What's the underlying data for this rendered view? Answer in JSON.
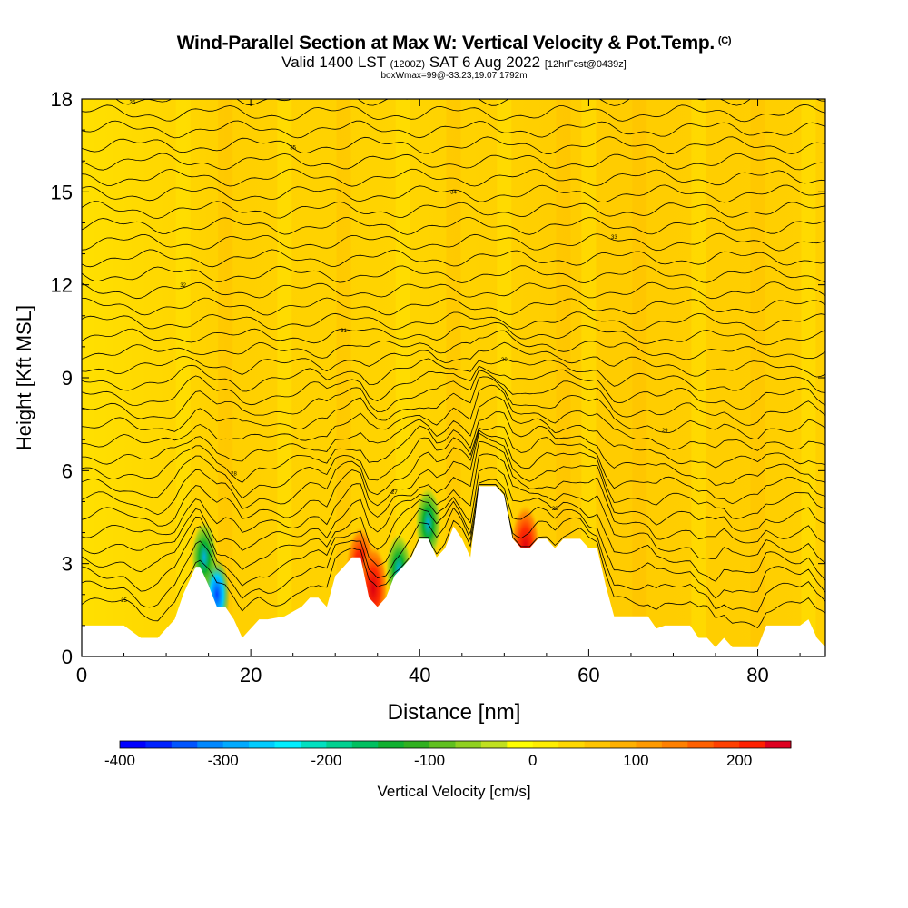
{
  "header": {
    "title": "Wind-Parallel Section at Max W: Vertical Velocity & Pot.Temp.",
    "copyright": "(C)",
    "valid_prefix": "Valid 1400 LST",
    "utc": "(1200Z)",
    "valid_date": "SAT 6 Aug 2022",
    "forecast": "[12hrFcst@0439z]",
    "boxinfo": "boxWmax=99@-33.23,19.07,1792m"
  },
  "chart_data": {
    "type": "heatmap",
    "xlabel": "Distance [nm]",
    "ylabel": "Height [Kft MSL]",
    "xlim": [
      0,
      88
    ],
    "ylim": [
      0,
      18
    ],
    "xticks": [
      0,
      20,
      40,
      60,
      80
    ],
    "yticks": [
      0,
      3,
      6,
      9,
      12,
      15,
      18
    ],
    "terrain": {
      "x": [
        0,
        5,
        7,
        9,
        10,
        11,
        12,
        13,
        13.5,
        14,
        15,
        16,
        17,
        18,
        19,
        20,
        21,
        22,
        24,
        26,
        27,
        28,
        29,
        30,
        31,
        32,
        33,
        34,
        35,
        36,
        37,
        38,
        39,
        40,
        41,
        42,
        43,
        44,
        45,
        46,
        47,
        48,
        49,
        50,
        51,
        52,
        53,
        54,
        55,
        56,
        57,
        58,
        59,
        60,
        61,
        62,
        63,
        64,
        65,
        66,
        67,
        68,
        69,
        70,
        71,
        72,
        73,
        74,
        75,
        76,
        77,
        78,
        79,
        80,
        81,
        82,
        83,
        84,
        85,
        86,
        87,
        88
      ],
      "height_kft": [
        1.0,
        1.0,
        0.6,
        0.6,
        0.9,
        1.2,
        2.0,
        2.6,
        2.9,
        2.9,
        2.3,
        1.6,
        1.6,
        1.2,
        0.6,
        0.9,
        1.2,
        1.2,
        1.3,
        1.6,
        1.9,
        1.9,
        1.6,
        2.6,
        2.9,
        3.2,
        3.2,
        1.9,
        1.6,
        1.9,
        2.6,
        2.9,
        3.2,
        3.8,
        3.8,
        3.2,
        3.5,
        4.2,
        3.8,
        3.2,
        5.5,
        5.5,
        5.5,
        5.2,
        3.8,
        3.5,
        3.5,
        3.8,
        3.8,
        3.5,
        3.8,
        3.8,
        3.8,
        3.5,
        3.5,
        2.3,
        1.3,
        1.3,
        1.3,
        1.3,
        1.3,
        0.9,
        1.0,
        1.0,
        1.0,
        1.0,
        0.6,
        0.6,
        0.3,
        0.6,
        0.3,
        0.3,
        0.3,
        0.3,
        1.0,
        1.0,
        1.0,
        1.0,
        1.0,
        1.2,
        0.6,
        0.3
      ]
    },
    "updrafts": [
      {
        "x": 33.0,
        "y_kft": 2.8,
        "w_cms": 230
      },
      {
        "x": 52.5,
        "y_kft": 3.5,
        "w_cms": 180
      },
      {
        "x": 34.5,
        "y_kft": 2.2,
        "w_cms": 200
      }
    ],
    "downdrafts": [
      {
        "x": 14.5,
        "y_kft": 3.2,
        "w_cms": -150
      },
      {
        "x": 16.0,
        "y_kft": 2.0,
        "w_cms": -330
      },
      {
        "x": 37.5,
        "y_kft": 2.8,
        "w_cms": -180
      },
      {
        "x": 41.0,
        "y_kft": 4.3,
        "w_cms": -150
      }
    ],
    "theta_contour_labels": [
      "25",
      "26",
      "27",
      "28",
      "29",
      "30",
      "31",
      "32",
      "33",
      "34",
      "35",
      "36",
      "37",
      "38",
      "39",
      "40"
    ],
    "colorbar": {
      "label": "Vertical Velocity [cm/s]",
      "min": -400,
      "max": 250,
      "step": 25,
      "ticks": [
        -400,
        -300,
        -200,
        -100,
        0,
        100,
        200
      ],
      "colors": [
        "#0000ff",
        "#0022ff",
        "#0055ff",
        "#0088ff",
        "#00aaff",
        "#00ccff",
        "#00eeff",
        "#00e0c0",
        "#00d090",
        "#00c060",
        "#10b030",
        "#30b020",
        "#60c020",
        "#90d020",
        "#c0e020",
        "#ffff00",
        "#ffee00",
        "#ffd800",
        "#ffc400",
        "#ffb000",
        "#ff9a00",
        "#ff8000",
        "#ff6000",
        "#ff4000",
        "#ff2000",
        "#dd0020"
      ]
    }
  }
}
